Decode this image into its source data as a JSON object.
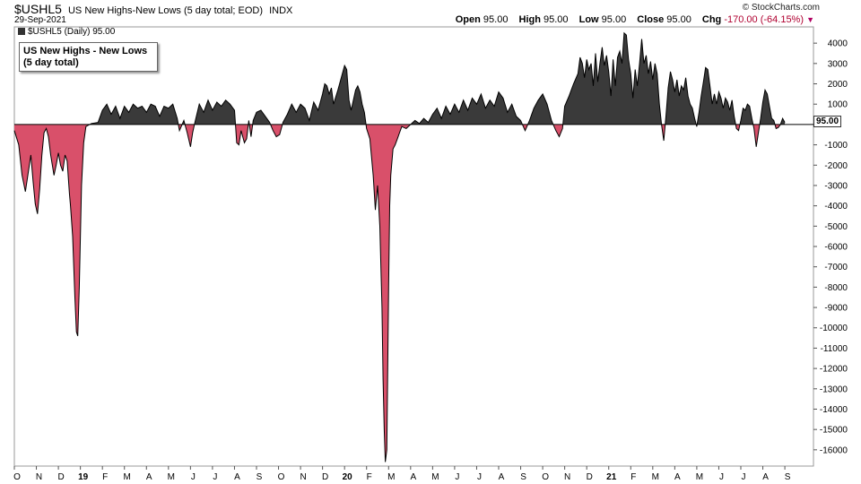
{
  "header": {
    "symbol": "$USHL5",
    "description": "US New Highs-New Lows (5 day total; EOD)",
    "exchange": "INDX",
    "date": "29-Sep-2021",
    "copyright": "© StockCharts.com",
    "quote": {
      "open_label": "Open",
      "open": "95.00",
      "high_label": "High",
      "high": "95.00",
      "low_label": "Low",
      "low": "95.00",
      "close_label": "Close",
      "close": "95.00",
      "chg_label": "Chg",
      "chg": "-170.00 (-64.15%)",
      "chg_arrow": "▼"
    }
  },
  "legend": {
    "text": "$USHL5 (Daily) 95.00"
  },
  "annotation": {
    "line1": "US New Highs - New Lows",
    "line2": "(5 day total)"
  },
  "last_value_tag": "95.00",
  "chart_data": {
    "type": "area",
    "series": [
      {
        "name": "$USHL5 (Daily)"
      }
    ],
    "positive_color": "#3a3a3a",
    "negative_color": "#d9506a",
    "ylim": [
      -16800,
      4800
    ],
    "yticks": [
      4000,
      3000,
      2000,
      1000,
      0,
      -1000,
      -2000,
      -3000,
      -4000,
      -5000,
      -6000,
      -7000,
      -8000,
      -9000,
      -10000,
      -11000,
      -12000,
      -13000,
      -14000,
      -15000,
      -16000
    ],
    "ytick_labels": [
      "4000",
      "3000",
      "2000",
      "1000",
      "0.00",
      "-1000",
      "-2000",
      "-3000",
      "-4000",
      "-5000",
      "-6000",
      "-7000",
      "-8000",
      "-9000",
      "-10000",
      "-11000",
      "-12000",
      "-13000",
      "-14000",
      "-15000",
      "-16000"
    ],
    "xlim": [
      0,
      36.3
    ],
    "xticks": [
      {
        "pos": 0,
        "label": "O"
      },
      {
        "pos": 1,
        "label": "N"
      },
      {
        "pos": 2,
        "label": "D"
      },
      {
        "pos": 3,
        "label": "19"
      },
      {
        "pos": 4,
        "label": "F"
      },
      {
        "pos": 5,
        "label": "M"
      },
      {
        "pos": 6,
        "label": "A"
      },
      {
        "pos": 7,
        "label": "M"
      },
      {
        "pos": 8,
        "label": "J"
      },
      {
        "pos": 9,
        "label": "J"
      },
      {
        "pos": 10,
        "label": "A"
      },
      {
        "pos": 11,
        "label": "S"
      },
      {
        "pos": 12,
        "label": "O"
      },
      {
        "pos": 13,
        "label": "N"
      },
      {
        "pos": 14,
        "label": "D"
      },
      {
        "pos": 15,
        "label": "20"
      },
      {
        "pos": 16,
        "label": "F"
      },
      {
        "pos": 17,
        "label": "M"
      },
      {
        "pos": 18,
        "label": "A"
      },
      {
        "pos": 19,
        "label": "M"
      },
      {
        "pos": 20,
        "label": "J"
      },
      {
        "pos": 21,
        "label": "J"
      },
      {
        "pos": 22,
        "label": "A"
      },
      {
        "pos": 23,
        "label": "S"
      },
      {
        "pos": 24,
        "label": "O"
      },
      {
        "pos": 25,
        "label": "N"
      },
      {
        "pos": 26,
        "label": "D"
      },
      {
        "pos": 27,
        "label": "21"
      },
      {
        "pos": 28,
        "label": "F"
      },
      {
        "pos": 29,
        "label": "M"
      },
      {
        "pos": 30,
        "label": "A"
      },
      {
        "pos": 31,
        "label": "M"
      },
      {
        "pos": 32,
        "label": "J"
      },
      {
        "pos": 33,
        "label": "J"
      },
      {
        "pos": 34,
        "label": "A"
      },
      {
        "pos": 35,
        "label": "S"
      }
    ],
    "points": [
      [
        0.0,
        -300
      ],
      [
        0.2,
        -1000
      ],
      [
        0.35,
        -2500
      ],
      [
        0.5,
        -3300
      ],
      [
        0.6,
        -2600
      ],
      [
        0.75,
        -1500
      ],
      [
        0.85,
        -2800
      ],
      [
        0.95,
        -3900
      ],
      [
        1.05,
        -4400
      ],
      [
        1.15,
        -3200
      ],
      [
        1.25,
        -1500
      ],
      [
        1.35,
        -400
      ],
      [
        1.45,
        -200
      ],
      [
        1.55,
        -600
      ],
      [
        1.65,
        -1500
      ],
      [
        1.8,
        -2500
      ],
      [
        1.9,
        -2000
      ],
      [
        2.0,
        -1400
      ],
      [
        2.1,
        -2000
      ],
      [
        2.2,
        -2300
      ],
      [
        2.3,
        -1500
      ],
      [
        2.4,
        -1800
      ],
      [
        2.5,
        -3400
      ],
      [
        2.55,
        -4000
      ],
      [
        2.65,
        -5500
      ],
      [
        2.75,
        -8500
      ],
      [
        2.82,
        -10200
      ],
      [
        2.88,
        -10400
      ],
      [
        2.95,
        -8000
      ],
      [
        3.05,
        -3000
      ],
      [
        3.15,
        -900
      ],
      [
        3.25,
        -100
      ],
      [
        3.5,
        50
      ],
      [
        3.8,
        100
      ],
      [
        4.0,
        700
      ],
      [
        4.2,
        1000
      ],
      [
        4.4,
        500
      ],
      [
        4.6,
        900
      ],
      [
        4.8,
        300
      ],
      [
        5.0,
        900
      ],
      [
        5.2,
        600
      ],
      [
        5.4,
        1000
      ],
      [
        5.6,
        800
      ],
      [
        5.8,
        900
      ],
      [
        6.0,
        600
      ],
      [
        6.2,
        1000
      ],
      [
        6.4,
        900
      ],
      [
        6.6,
        400
      ],
      [
        6.8,
        900
      ],
      [
        7.0,
        800
      ],
      [
        7.2,
        1000
      ],
      [
        7.4,
        300
      ],
      [
        7.5,
        -300
      ],
      [
        7.7,
        200
      ],
      [
        7.85,
        -400
      ],
      [
        8.0,
        -1100
      ],
      [
        8.1,
        -400
      ],
      [
        8.2,
        100
      ],
      [
        8.4,
        1000
      ],
      [
        8.6,
        600
      ],
      [
        8.8,
        1200
      ],
      [
        9.0,
        700
      ],
      [
        9.2,
        1100
      ],
      [
        9.4,
        900
      ],
      [
        9.6,
        1200
      ],
      [
        9.8,
        1000
      ],
      [
        10.0,
        700
      ],
      [
        10.1,
        -900
      ],
      [
        10.2,
        -1000
      ],
      [
        10.3,
        -300
      ],
      [
        10.45,
        -900
      ],
      [
        10.55,
        -700
      ],
      [
        10.65,
        200
      ],
      [
        10.75,
        -600
      ],
      [
        10.85,
        200
      ],
      [
        11.0,
        600
      ],
      [
        11.2,
        700
      ],
      [
        11.4,
        400
      ],
      [
        11.6,
        100
      ],
      [
        11.75,
        -300
      ],
      [
        11.9,
        -600
      ],
      [
        12.05,
        -500
      ],
      [
        12.2,
        100
      ],
      [
        12.4,
        500
      ],
      [
        12.6,
        1000
      ],
      [
        12.8,
        600
      ],
      [
        13.0,
        1000
      ],
      [
        13.2,
        800
      ],
      [
        13.4,
        200
      ],
      [
        13.6,
        1100
      ],
      [
        13.8,
        700
      ],
      [
        14.0,
        1500
      ],
      [
        14.1,
        2000
      ],
      [
        14.2,
        1900
      ],
      [
        14.3,
        1500
      ],
      [
        14.4,
        1800
      ],
      [
        14.5,
        1000
      ],
      [
        14.7,
        1700
      ],
      [
        14.9,
        2500
      ],
      [
        15.0,
        2900
      ],
      [
        15.1,
        2700
      ],
      [
        15.2,
        1200
      ],
      [
        15.3,
        700
      ],
      [
        15.4,
        1200
      ],
      [
        15.5,
        1700
      ],
      [
        15.6,
        1900
      ],
      [
        15.7,
        1600
      ],
      [
        15.8,
        1000
      ],
      [
        15.9,
        600
      ],
      [
        16.0,
        -200
      ],
      [
        16.15,
        -700
      ],
      [
        16.3,
        -2500
      ],
      [
        16.4,
        -4200
      ],
      [
        16.5,
        -3000
      ],
      [
        16.6,
        -5000
      ],
      [
        16.7,
        -9000
      ],
      [
        16.75,
        -12500
      ],
      [
        16.8,
        -15000
      ],
      [
        16.85,
        -16600
      ],
      [
        16.92,
        -16000
      ],
      [
        17.0,
        -8000
      ],
      [
        17.05,
        -4000
      ],
      [
        17.1,
        -2500
      ],
      [
        17.2,
        -1200
      ],
      [
        17.3,
        -1000
      ],
      [
        17.4,
        -700
      ],
      [
        17.5,
        -400
      ],
      [
        17.6,
        -100
      ],
      [
        17.8,
        -200
      ],
      [
        18.0,
        0
      ],
      [
        18.2,
        200
      ],
      [
        18.4,
        50
      ],
      [
        18.6,
        300
      ],
      [
        18.8,
        100
      ],
      [
        19.0,
        500
      ],
      [
        19.2,
        800
      ],
      [
        19.4,
        300
      ],
      [
        19.6,
        900
      ],
      [
        19.8,
        500
      ],
      [
        20.0,
        1000
      ],
      [
        20.2,
        600
      ],
      [
        20.4,
        1200
      ],
      [
        20.6,
        700
      ],
      [
        20.8,
        1300
      ],
      [
        21.0,
        1000
      ],
      [
        21.2,
        1500
      ],
      [
        21.4,
        800
      ],
      [
        21.6,
        1200
      ],
      [
        21.8,
        900
      ],
      [
        22.0,
        1600
      ],
      [
        22.2,
        1300
      ],
      [
        22.4,
        600
      ],
      [
        22.6,
        1000
      ],
      [
        22.8,
        400
      ],
      [
        23.0,
        200
      ],
      [
        23.2,
        -300
      ],
      [
        23.4,
        200
      ],
      [
        23.6,
        800
      ],
      [
        23.8,
        1200
      ],
      [
        24.0,
        1500
      ],
      [
        24.2,
        1000
      ],
      [
        24.4,
        200
      ],
      [
        24.6,
        -300
      ],
      [
        24.75,
        -600
      ],
      [
        24.9,
        -200
      ],
      [
        25.0,
        900
      ],
      [
        25.2,
        1400
      ],
      [
        25.4,
        2000
      ],
      [
        25.6,
        2500
      ],
      [
        25.7,
        3300
      ],
      [
        25.8,
        3000
      ],
      [
        25.9,
        2300
      ],
      [
        26.0,
        3200
      ],
      [
        26.1,
        2700
      ],
      [
        26.2,
        3000
      ],
      [
        26.3,
        1900
      ],
      [
        26.4,
        3500
      ],
      [
        26.5,
        2100
      ],
      [
        26.6,
        3000
      ],
      [
        26.7,
        3800
      ],
      [
        26.8,
        2900
      ],
      [
        26.9,
        3400
      ],
      [
        27.0,
        2600
      ],
      [
        27.1,
        1400
      ],
      [
        27.2,
        3200
      ],
      [
        27.3,
        1900
      ],
      [
        27.4,
        3300
      ],
      [
        27.5,
        3600
      ],
      [
        27.6,
        3000
      ],
      [
        27.7,
        4500
      ],
      [
        27.8,
        4400
      ],
      [
        27.9,
        3200
      ],
      [
        28.0,
        2500
      ],
      [
        28.1,
        1300
      ],
      [
        28.2,
        2700
      ],
      [
        28.3,
        1900
      ],
      [
        28.4,
        3000
      ],
      [
        28.5,
        4200
      ],
      [
        28.6,
        3000
      ],
      [
        28.7,
        3400
      ],
      [
        28.8,
        2500
      ],
      [
        28.9,
        3100
      ],
      [
        29.0,
        2200
      ],
      [
        29.1,
        3000
      ],
      [
        29.2,
        2500
      ],
      [
        29.3,
        1000
      ],
      [
        29.4,
        0
      ],
      [
        29.5,
        -800
      ],
      [
        29.6,
        400
      ],
      [
        29.7,
        1800
      ],
      [
        29.8,
        2600
      ],
      [
        29.9,
        2200
      ],
      [
        30.0,
        1600
      ],
      [
        30.1,
        2200
      ],
      [
        30.2,
        1400
      ],
      [
        30.3,
        1900
      ],
      [
        30.4,
        1700
      ],
      [
        30.5,
        2300
      ],
      [
        30.6,
        1400
      ],
      [
        30.7,
        1000
      ],
      [
        30.8,
        800
      ],
      [
        30.9,
        300
      ],
      [
        31.0,
        -100
      ],
      [
        31.1,
        600
      ],
      [
        31.2,
        1400
      ],
      [
        31.3,
        2100
      ],
      [
        31.4,
        2800
      ],
      [
        31.5,
        2700
      ],
      [
        31.6,
        1900
      ],
      [
        31.7,
        1000
      ],
      [
        31.8,
        1500
      ],
      [
        31.9,
        1000
      ],
      [
        32.0,
        1600
      ],
      [
        32.1,
        1300
      ],
      [
        32.2,
        800
      ],
      [
        32.3,
        1300
      ],
      [
        32.4,
        1100
      ],
      [
        32.5,
        700
      ],
      [
        32.6,
        1200
      ],
      [
        32.7,
        400
      ],
      [
        32.8,
        -200
      ],
      [
        32.9,
        -300
      ],
      [
        33.0,
        200
      ],
      [
        33.1,
        800
      ],
      [
        33.2,
        700
      ],
      [
        33.3,
        1000
      ],
      [
        33.4,
        900
      ],
      [
        33.5,
        300
      ],
      [
        33.6,
        -200
      ],
      [
        33.7,
        -1100
      ],
      [
        33.8,
        -400
      ],
      [
        33.9,
        300
      ],
      [
        34.0,
        1100
      ],
      [
        34.1,
        1700
      ],
      [
        34.2,
        1500
      ],
      [
        34.3,
        900
      ],
      [
        34.4,
        300
      ],
      [
        34.5,
        200
      ],
      [
        34.6,
        -200
      ],
      [
        34.7,
        -150
      ],
      [
        34.8,
        0
      ],
      [
        34.9,
        300
      ],
      [
        35.0,
        100
      ]
    ]
  }
}
